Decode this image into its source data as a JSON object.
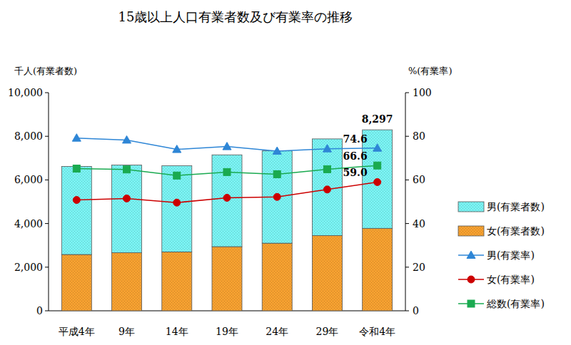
{
  "chart_data": {
    "type": "bar",
    "title": "15歳以上人口有業者数及び有業率の推移",
    "y_label": "千人(有業者数)",
    "y2_label": "%(有業率)",
    "categories": [
      "平成4年",
      "9年",
      "14年",
      "19年",
      "24年",
      "29年",
      "令和4年"
    ],
    "stacked": true,
    "grid": false,
    "legend": "right",
    "ylim": [
      0,
      10000
    ],
    "yticks": [
      0,
      {
        "value": 2000,
        "label": "2,000"
      },
      {
        "value": 4000,
        "label": "4,000"
      },
      {
        "value": 6000,
        "label": "6,000"
      },
      {
        "value": 8000,
        "label": "8,000"
      },
      {
        "value": 10000,
        "label": "10,000"
      }
    ],
    "y2lim": [
      0,
      100
    ],
    "y2ticks": [
      0,
      20,
      40,
      60,
      80,
      100
    ],
    "series": [
      {
        "name": "男(有業者数)",
        "type": "bar",
        "color": "#79f2f2",
        "values": [
          4040,
          4020,
          3950,
          4210,
          4230,
          4430,
          4517
        ]
      },
      {
        "name": "女(有業者数)",
        "type": "bar",
        "color": "#f5a030",
        "values": [
          2580,
          2660,
          2700,
          2940,
          3100,
          3450,
          3780
        ]
      },
      {
        "name": "男(有業率)",
        "type": "line",
        "axis": "y2",
        "color": "#2e86d6",
        "marker": "triangle",
        "values": [
          79.2,
          78.3,
          74.0,
          75.3,
          73.2,
          74.3,
          74.6
        ],
        "value_labels": [
          null,
          null,
          null,
          null,
          null,
          null,
          "74.6"
        ]
      },
      {
        "name": "女(有業率)",
        "type": "line",
        "axis": "y2",
        "color": "#cc0000",
        "marker": "circle",
        "values": [
          50.8,
          51.5,
          49.6,
          51.8,
          52.2,
          55.6,
          59.0
        ],
        "value_labels": [
          null,
          null,
          null,
          null,
          null,
          null,
          "59.0"
        ]
      },
      {
        "name": "総数(有業率)",
        "type": "line",
        "axis": "y2",
        "color": "#1aaa50",
        "marker": "square",
        "values": [
          65.2,
          64.8,
          62.0,
          63.6,
          62.6,
          64.9,
          66.6
        ],
        "value_labels": [
          null,
          null,
          null,
          null,
          null,
          null,
          "66.6"
        ]
      }
    ],
    "annotations": [
      {
        "text": "8,297",
        "value": 8297,
        "category": "令和4年"
      }
    ]
  }
}
